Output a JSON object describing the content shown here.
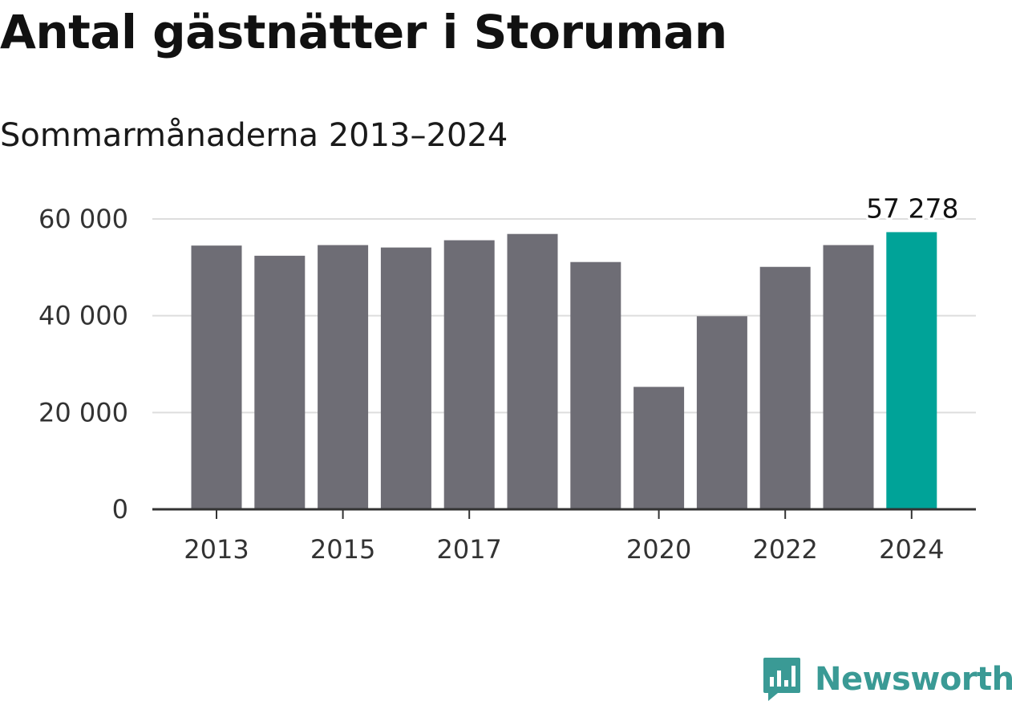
{
  "chart_data": {
    "type": "bar",
    "title": "Antal gästnätter i Storuman",
    "subtitle": "Sommarmånaderna 2013–2024",
    "categories": [
      "2013",
      "2014",
      "2015",
      "2016",
      "2017",
      "2018",
      "2019",
      "2020",
      "2021",
      "2022",
      "2023",
      "2024"
    ],
    "values": [
      54500,
      52400,
      54600,
      54100,
      55600,
      56900,
      51100,
      25300,
      39900,
      50100,
      54600,
      57278
    ],
    "x_tick_labels": [
      "2013",
      "2015",
      "2017",
      "2020",
      "2022",
      "2024"
    ],
    "y_ticks": [
      0,
      20000,
      40000,
      60000
    ],
    "y_tick_labels": [
      "0",
      "20 000",
      "40 000",
      "60 000"
    ],
    "ylim": [
      0,
      60000
    ],
    "grid": true,
    "highlight_index": 11,
    "highlight_label": "57 278",
    "colors": {
      "bar": "#6e6d75",
      "highlight": "#00a398",
      "grid": "#dddddd",
      "axis": "#333333"
    }
  },
  "brand": {
    "name": "Newsworthy",
    "color": "#3a9a95"
  }
}
